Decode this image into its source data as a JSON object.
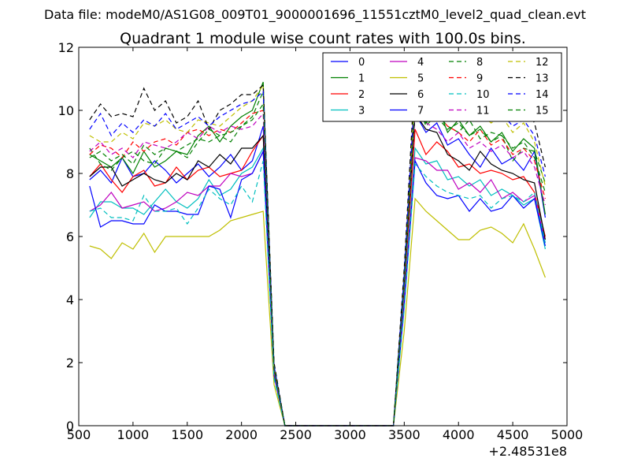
{
  "header": {
    "datafile_label": "Data file: modeM0/AS1G08_009T01_9000001696_11551cztM0_level2_quad_clean.evt"
  },
  "chart_data": {
    "type": "line",
    "title": "Quadrant 1 module wise count rates with 100.0s bins.",
    "xlabel": "",
    "ylabel": "",
    "x_offset_label": "+2.48531e8",
    "xlim": [
      500,
      5000
    ],
    "ylim": [
      0,
      12
    ],
    "x_ticks": [
      500,
      1000,
      1500,
      2000,
      2500,
      3000,
      3500,
      4000,
      4500,
      5000
    ],
    "x_tick_labels": [
      "500",
      "1000",
      "1500",
      "2000",
      "2500",
      "3000",
      "3500",
      "4000",
      "4500",
      "5000"
    ],
    "y_ticks": [
      0,
      2,
      4,
      6,
      8,
      10,
      12
    ],
    "y_tick_labels": [
      "0",
      "2",
      "4",
      "6",
      "8",
      "10",
      "12"
    ],
    "grid": false,
    "legend_position": "top-right",
    "legend_columns": 4,
    "x": [
      600,
      700,
      800,
      900,
      1000,
      1100,
      1200,
      1300,
      1400,
      1500,
      1600,
      1700,
      1800,
      1900,
      2000,
      2100,
      2200,
      2300,
      2400,
      2500,
      2600,
      2700,
      2800,
      2900,
      3000,
      3100,
      3200,
      3300,
      3400,
      3500,
      3600,
      3700,
      3800,
      3900,
      4000,
      4100,
      4200,
      4300,
      4400,
      4500,
      4600,
      4700,
      4800
    ],
    "series": [
      {
        "name": "0",
        "color": "#0000ff",
        "dash": "solid",
        "values": [
          7.8,
          8.1,
          7.7,
          8.5,
          7.9,
          8.0,
          8.4,
          8.1,
          7.7,
          8.0,
          8.3,
          7.9,
          8.2,
          8.6,
          8.1,
          8.4,
          9.5,
          1.9,
          0.0,
          0.0,
          0.0,
          0.0,
          0.0,
          0.0,
          0.0,
          0.0,
          0.0,
          0.0,
          0.0,
          4.5,
          9.9,
          9.3,
          9.6,
          8.9,
          9.1,
          8.6,
          8.2,
          8.8,
          8.3,
          8.5,
          8.1,
          8.7,
          6.6
        ]
      },
      {
        "name": "1",
        "color": "#008000",
        "dash": "solid",
        "values": [
          8.6,
          8.4,
          8.2,
          8.5,
          8.0,
          8.7,
          8.2,
          8.4,
          8.7,
          8.6,
          9.2,
          9.5,
          9.0,
          9.5,
          9.8,
          10.0,
          10.9,
          1.8,
          0.0,
          0.0,
          0.0,
          0.0,
          0.0,
          0.0,
          0.0,
          0.0,
          0.0,
          0.0,
          0.0,
          4.7,
          10.7,
          9.6,
          10.2,
          9.3,
          9.7,
          9.2,
          9.5,
          9.0,
          9.3,
          8.7,
          9.1,
          8.8,
          6.7
        ]
      },
      {
        "name": "2",
        "color": "#ff0000",
        "dash": "solid",
        "values": [
          7.9,
          8.3,
          7.8,
          7.4,
          7.9,
          8.1,
          7.6,
          7.7,
          8.2,
          7.8,
          8.1,
          8.2,
          7.9,
          8.0,
          8.1,
          8.7,
          9.2,
          1.7,
          0.0,
          0.0,
          0.0,
          0.0,
          0.0,
          0.0,
          0.0,
          0.0,
          0.0,
          0.0,
          0.0,
          4.3,
          9.4,
          8.6,
          9.0,
          8.7,
          8.2,
          8.3,
          8.0,
          8.1,
          8.0,
          7.8,
          7.9,
          7.4,
          6.0
        ]
      },
      {
        "name": "3",
        "color": "#00bfbf",
        "dash": "solid",
        "values": [
          6.6,
          7.1,
          7.1,
          6.9,
          6.9,
          6.7,
          7.1,
          7.5,
          7.1,
          6.9,
          7.2,
          7.8,
          7.3,
          7.5,
          8.0,
          8.2,
          8.8,
          1.6,
          0.0,
          0.0,
          0.0,
          0.0,
          0.0,
          0.0,
          0.0,
          0.0,
          0.0,
          0.0,
          0.0,
          4.0,
          8.8,
          8.3,
          8.4,
          7.8,
          7.9,
          7.6,
          7.8,
          7.3,
          7.5,
          7.3,
          7.0,
          7.2,
          5.6
        ]
      },
      {
        "name": "4",
        "color": "#bf00bf",
        "dash": "solid",
        "values": [
          6.8,
          7.0,
          7.4,
          6.9,
          7.0,
          7.1,
          6.8,
          6.9,
          7.1,
          7.4,
          7.3,
          7.6,
          7.6,
          8.0,
          7.9,
          8.0,
          8.7,
          1.6,
          0.0,
          0.0,
          0.0,
          0.0,
          0.0,
          0.0,
          0.0,
          0.0,
          0.0,
          0.0,
          0.0,
          3.9,
          8.5,
          8.4,
          8.1,
          8.1,
          7.5,
          7.7,
          7.4,
          7.8,
          7.2,
          7.4,
          7.1,
          7.3,
          5.8
        ]
      },
      {
        "name": "5",
        "color": "#bfbf00",
        "dash": "solid",
        "values": [
          5.7,
          5.6,
          5.3,
          5.8,
          5.6,
          6.1,
          5.5,
          6.0,
          6.0,
          6.0,
          6.0,
          6.0,
          6.2,
          6.5,
          6.6,
          6.7,
          6.8,
          1.3,
          0.0,
          0.0,
          0.0,
          0.0,
          0.0,
          0.0,
          0.0,
          0.0,
          0.0,
          0.0,
          0.0,
          3.0,
          7.2,
          6.8,
          6.5,
          6.2,
          5.9,
          5.9,
          6.2,
          6.3,
          6.1,
          5.8,
          6.4,
          5.6,
          4.7
        ]
      },
      {
        "name": "6",
        "color": "#000000",
        "dash": "solid",
        "values": [
          7.9,
          8.2,
          8.2,
          7.6,
          7.8,
          8.0,
          7.8,
          7.7,
          8.0,
          7.8,
          8.4,
          8.2,
          8.6,
          8.3,
          8.8,
          8.8,
          9.2,
          1.8,
          0.0,
          0.0,
          0.0,
          0.0,
          0.0,
          0.0,
          0.0,
          0.0,
          0.0,
          0.0,
          0.0,
          4.5,
          9.9,
          9.4,
          9.3,
          8.6,
          8.4,
          8.1,
          8.7,
          8.3,
          8.1,
          8.0,
          7.8,
          7.7,
          5.9
        ]
      },
      {
        "name": "7",
        "color": "#0000ff",
        "dash": "solid",
        "values": [
          7.6,
          6.3,
          6.5,
          6.5,
          6.4,
          6.4,
          7.0,
          6.8,
          6.8,
          6.7,
          6.7,
          7.6,
          7.5,
          6.6,
          7.8,
          8.0,
          8.7,
          1.6,
          0.0,
          0.0,
          0.0,
          0.0,
          0.0,
          0.0,
          0.0,
          0.0,
          0.0,
          0.0,
          0.0,
          3.8,
          8.4,
          7.7,
          7.3,
          7.2,
          7.3,
          6.8,
          7.2,
          6.8,
          6.9,
          7.3,
          6.9,
          7.2,
          5.7
        ]
      },
      {
        "name": "8",
        "color": "#008000",
        "dash": "dashed",
        "values": [
          8.8,
          8.3,
          8.1,
          8.5,
          8.7,
          8.4,
          8.3,
          8.8,
          8.7,
          8.5,
          9.0,
          9.4,
          9.2,
          9.0,
          9.5,
          9.8,
          10.6,
          1.7,
          0.0,
          0.0,
          0.0,
          0.0,
          0.0,
          0.0,
          0.0,
          0.0,
          0.0,
          0.0,
          0.0,
          4.6,
          10.4,
          9.5,
          9.9,
          9.5,
          9.3,
          9.7,
          9.1,
          9.3,
          9.2,
          8.4,
          8.8,
          8.7,
          7.7
        ]
      },
      {
        "name": "9",
        "color": "#ff0000",
        "dash": "dashed",
        "values": [
          8.6,
          8.9,
          8.8,
          8.5,
          9.0,
          8.7,
          9.0,
          9.1,
          8.9,
          9.3,
          9.4,
          9.2,
          9.4,
          9.3,
          9.6,
          9.9,
          10.0,
          1.8,
          0.0,
          0.0,
          0.0,
          0.0,
          0.0,
          0.0,
          0.0,
          0.0,
          0.0,
          0.0,
          0.0,
          4.7,
          10.2,
          9.7,
          9.9,
          9.5,
          9.3,
          9.0,
          9.4,
          8.9,
          9.1,
          8.6,
          8.8,
          8.4,
          7.2
        ]
      },
      {
        "name": "10",
        "color": "#00bfbf",
        "dash": "dashed",
        "values": [
          6.8,
          6.9,
          6.6,
          6.6,
          6.5,
          7.3,
          6.8,
          6.8,
          6.9,
          6.4,
          6.9,
          7.5,
          7.2,
          7.0,
          7.6,
          7.1,
          8.4,
          1.5,
          0.0,
          0.0,
          0.0,
          0.0,
          0.0,
          0.0,
          0.0,
          0.0,
          0.0,
          0.0,
          0.0,
          3.7,
          8.3,
          7.9,
          7.6,
          7.4,
          7.3,
          7.2,
          7.3,
          6.9,
          7.2,
          7.3,
          7.1,
          7.4,
          5.8
        ]
      },
      {
        "name": "11",
        "color": "#bf00bf",
        "dash": "dashed",
        "values": [
          8.7,
          9.0,
          8.6,
          8.8,
          8.5,
          9.0,
          8.9,
          8.8,
          9.0,
          9.3,
          9.1,
          9.5,
          9.3,
          9.5,
          9.4,
          9.5,
          9.9,
          1.7,
          0.0,
          0.0,
          0.0,
          0.0,
          0.0,
          0.0,
          0.0,
          0.0,
          0.0,
          0.0,
          0.0,
          4.4,
          9.9,
          9.6,
          9.4,
          9.0,
          9.3,
          8.8,
          9.0,
          8.7,
          8.9,
          8.5,
          8.7,
          8.2,
          7.0
        ]
      },
      {
        "name": "12",
        "color": "#bfbf00",
        "dash": "dashed",
        "values": [
          9.2,
          9.0,
          9.0,
          9.3,
          9.1,
          9.6,
          9.5,
          9.7,
          9.4,
          9.3,
          9.7,
          9.6,
          9.5,
          9.8,
          10.1,
          10.3,
          10.8,
          1.9,
          0.0,
          0.0,
          0.0,
          0.0,
          0.0,
          0.0,
          0.0,
          0.0,
          0.0,
          0.0,
          0.0,
          4.9,
          10.9,
          10.3,
          10.5,
          9.9,
          10.2,
          9.7,
          9.9,
          9.6,
          9.8,
          9.3,
          9.6,
          9.0,
          7.6
        ]
      },
      {
        "name": "13",
        "color": "#000000",
        "dash": "dashed",
        "values": [
          9.7,
          10.2,
          9.8,
          9.9,
          9.8,
          10.7,
          10.0,
          10.3,
          9.6,
          9.8,
          10.3,
          9.4,
          10.0,
          10.2,
          10.5,
          10.5,
          10.8,
          2.0,
          0.0,
          0.0,
          0.0,
          0.0,
          0.0,
          0.0,
          0.0,
          0.0,
          0.0,
          0.0,
          0.0,
          5.0,
          11.3,
          10.8,
          11.1,
          10.4,
          10.9,
          10.3,
          10.6,
          10.1,
          10.4,
          9.9,
          10.2,
          9.6,
          8.2
        ]
      },
      {
        "name": "14",
        "color": "#0000ff",
        "dash": "dashed",
        "values": [
          9.4,
          9.9,
          9.2,
          9.6,
          9.3,
          9.7,
          9.5,
          9.9,
          9.4,
          9.6,
          9.8,
          9.5,
          9.8,
          10.0,
          10.2,
          10.3,
          10.6,
          1.9,
          0.0,
          0.0,
          0.0,
          0.0,
          0.0,
          0.0,
          0.0,
          0.0,
          0.0,
          0.0,
          0.0,
          4.8,
          10.8,
          10.4,
          10.6,
          10.1,
          10.3,
          9.9,
          10.1,
          9.7,
          9.9,
          9.5,
          9.7,
          9.2,
          7.9
        ]
      },
      {
        "name": "15",
        "color": "#008000",
        "dash": "dashed",
        "values": [
          8.5,
          8.7,
          8.4,
          8.6,
          8.3,
          8.9,
          8.6,
          8.8,
          8.7,
          8.9,
          9.1,
          9.0,
          9.2,
          9.3,
          9.5,
          9.7,
          10.2,
          1.8,
          0.0,
          0.0,
          0.0,
          0.0,
          0.0,
          0.0,
          0.0,
          0.0,
          0.0,
          0.0,
          0.0,
          4.5,
          10.1,
          9.6,
          9.8,
          9.4,
          9.6,
          9.2,
          9.4,
          9.0,
          9.2,
          8.8,
          9.0,
          8.5,
          7.4
        ]
      }
    ]
  }
}
